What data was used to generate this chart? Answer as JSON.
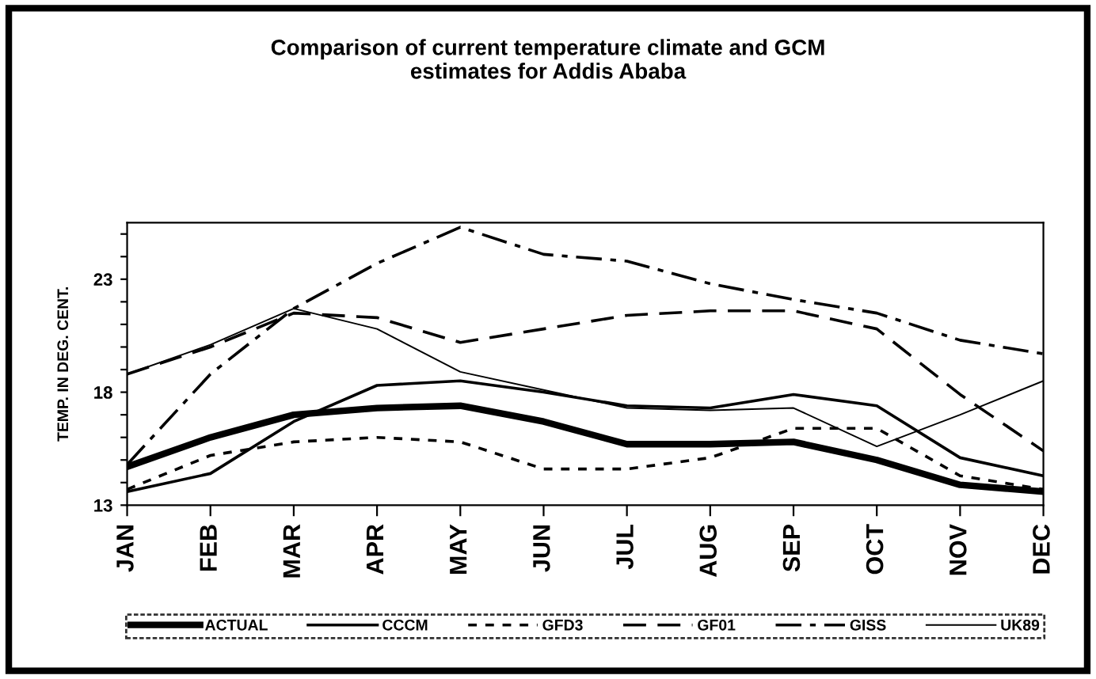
{
  "chart_data": {
    "type": "line",
    "title": "Comparison of current temperature climate and GCM\nestimates for Addis Ababa",
    "ylabel": "TEMP. IN DEG. CENT.",
    "categories": [
      "JAN",
      "FEB",
      "MAR",
      "APR",
      "MAY",
      "JUN",
      "JUL",
      "AUG",
      "SEP",
      "OCT",
      "NOV",
      "DEC"
    ],
    "series": [
      {
        "name": "ACTUAL",
        "color": "#000000",
        "line_style": "solid",
        "values": [
          14.7,
          16.0,
          17.0,
          17.3,
          17.4,
          16.7,
          15.7,
          15.7,
          15.8,
          15.0,
          13.9,
          13.6
        ]
      },
      {
        "name": "CCCM",
        "color": "#000000",
        "line_style": "solid",
        "values": [
          13.6,
          14.4,
          16.7,
          18.3,
          18.5,
          18.0,
          17.4,
          17.3,
          17.9,
          17.4,
          15.1,
          14.3
        ]
      },
      {
        "name": "GFD3",
        "color": "#000000",
        "line_style": "dotted",
        "values": [
          13.7,
          15.2,
          15.8,
          16.0,
          15.8,
          14.6,
          14.6,
          15.1,
          16.4,
          16.4,
          14.3,
          13.7
        ]
      },
      {
        "name": "GF01",
        "color": "#000000",
        "line_style": "dashed",
        "values": [
          18.8,
          20.0,
          21.5,
          21.3,
          20.2,
          20.8,
          21.4,
          21.6,
          21.6,
          20.8,
          17.9,
          15.4
        ]
      },
      {
        "name": "GISS",
        "color": "#000000",
        "line_style": "dashdot",
        "values": [
          14.8,
          18.8,
          21.7,
          23.7,
          25.3,
          24.1,
          23.8,
          22.8,
          22.1,
          21.5,
          20.3,
          19.7
        ]
      },
      {
        "name": "UK89",
        "color": "#000000",
        "line_style": "solid",
        "values": [
          18.8,
          20.1,
          21.7,
          20.8,
          18.9,
          18.1,
          17.3,
          17.2,
          17.3,
          15.6,
          17.0,
          18.5
        ]
      }
    ],
    "ylim": [
      13,
      25.5
    ],
    "yticks": [
      13,
      {
        "value": 14,
        "label": null
      },
      {
        "value": 15,
        "label": null
      },
      {
        "value": 16,
        "label": null
      },
      {
        "value": 17,
        "label": null
      },
      18,
      {
        "value": 19,
        "label": null
      },
      {
        "value": 20,
        "label": null
      },
      {
        "value": 21,
        "label": null
      },
      {
        "value": 22,
        "label": null
      },
      23,
      {
        "value": 24,
        "label": null
      },
      {
        "value": 25,
        "label": null
      }
    ],
    "grid": false,
    "legend": "bottom",
    "marker": "none"
  }
}
